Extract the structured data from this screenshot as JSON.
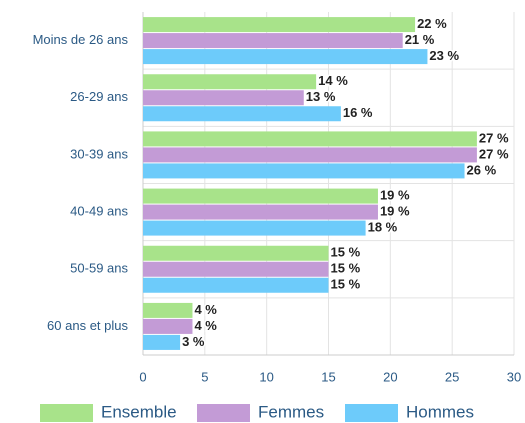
{
  "chart_data": {
    "type": "bar",
    "orientation": "horizontal",
    "categories": [
      "Moins de 26 ans",
      "26-29 ans",
      "30-39 ans",
      "40-49 ans",
      "50-59 ans",
      "60 ans et plus"
    ],
    "series": [
      {
        "name": "Ensemble",
        "color": "#a8e38a",
        "values": [
          22,
          14,
          27,
          19,
          15,
          4
        ],
        "value_labels": [
          "22 %",
          "14 %",
          "27 %",
          "19 %",
          "15 %",
          "4 %"
        ]
      },
      {
        "name": "Femmes",
        "color": "#c39bd6",
        "values": [
          21,
          13,
          27,
          19,
          15,
          4
        ],
        "value_labels": [
          "21 %",
          "13 %",
          "27 %",
          "19 %",
          "15 %",
          "4 %"
        ]
      },
      {
        "name": "Hommes",
        "color": "#6dcbfa",
        "values": [
          23,
          16,
          26,
          18,
          15,
          3
        ],
        "value_labels": [
          "23 %",
          "16 %",
          "26 %",
          "18 %",
          "15 %",
          "3 %"
        ]
      }
    ],
    "xlim": [
      0,
      30
    ],
    "xticks": [
      0,
      5,
      10,
      15,
      20,
      25,
      30
    ],
    "grid": true,
    "legend": "bottom"
  }
}
